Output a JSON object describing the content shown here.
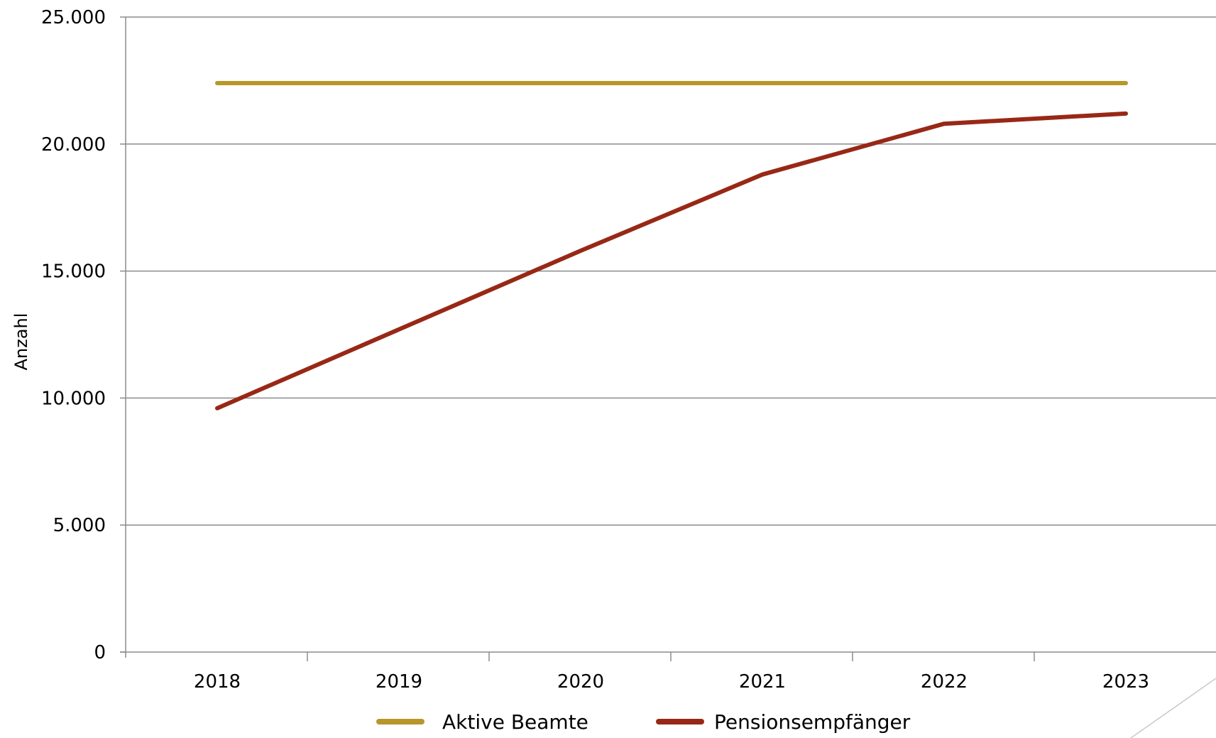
{
  "chart_data": {
    "type": "line",
    "x": [
      "2018",
      "2019",
      "2020",
      "2021",
      "2022",
      "2023"
    ],
    "series": [
      {
        "name": "Aktive Beamte",
        "values": [
          22400,
          22400,
          22400,
          22400,
          22400,
          22400
        ],
        "color": "#B8962A"
      },
      {
        "name": "Pensionsempfänger",
        "values": [
          9600,
          12700,
          15800,
          18800,
          20800,
          21200
        ],
        "color": "#982816"
      }
    ],
    "ylabel": "Anzahl",
    "ylim": [
      0,
      25000
    ],
    "yticks": [
      {
        "value": 0,
        "label": "0"
      },
      {
        "value": 5000,
        "label": "5.000"
      },
      {
        "value": 10000,
        "label": "10.000"
      },
      {
        "value": 15000,
        "label": "15.000"
      },
      {
        "value": 20000,
        "label": "20.000"
      },
      {
        "value": 25000,
        "label": "25.000"
      }
    ],
    "grid": true,
    "legend_position": "bottom"
  },
  "colors": {
    "gridline": "#8c8c8c",
    "axis": "#8c8c8c",
    "decorative_line": "#c9c9c9"
  }
}
